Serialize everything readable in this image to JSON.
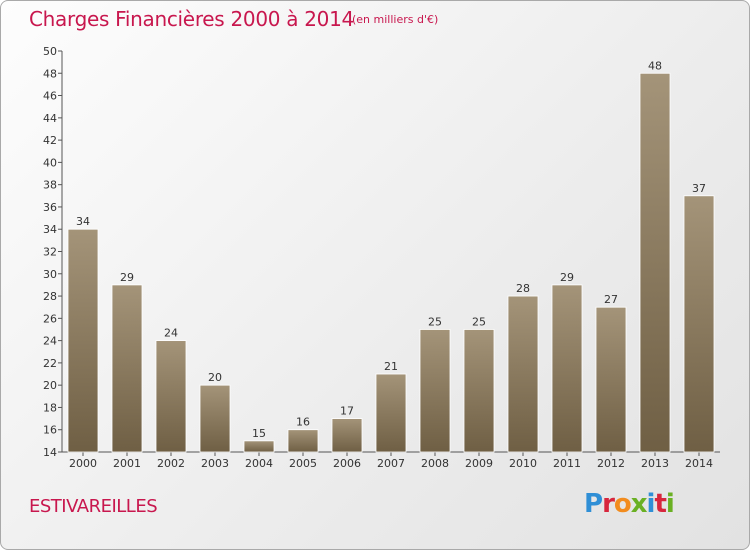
{
  "header": {
    "title": "Charges Financières 2000 à 2014",
    "subtitle": "(en milliers d'€)"
  },
  "footer": {
    "place": "ESTIVAREILLES",
    "logo_letters": [
      "P",
      "r",
      "o",
      "x",
      "i",
      "t",
      "i"
    ],
    "logo_colors": [
      "#2f8fd6",
      "#d7263d",
      "#f28c1e",
      "#6ab023",
      "#2f8fd6",
      "#d7263d",
      "#6ab023"
    ]
  },
  "colors": {
    "bar_top": "#a49479",
    "bar_bottom": "#6f5f44",
    "title": "#c8174e"
  },
  "chart_data": {
    "type": "bar",
    "categories": [
      "2000",
      "2001",
      "2002",
      "2003",
      "2004",
      "2005",
      "2006",
      "2007",
      "2008",
      "2009",
      "2010",
      "2011",
      "2012",
      "2013",
      "2014"
    ],
    "values": [
      34,
      29,
      24,
      20,
      15,
      16,
      17,
      21,
      25,
      25,
      28,
      29,
      27,
      48,
      37
    ],
    "data_labels": [
      "34",
      "29",
      "24",
      "20",
      "15",
      "16",
      "17",
      "21",
      "25",
      "25",
      "28",
      "29",
      "27",
      "48",
      "37"
    ],
    "y_ticks": [
      "14",
      "16",
      "18",
      "20",
      "22",
      "24",
      "26",
      "28",
      "30",
      "32",
      "34",
      "36",
      "38",
      "40",
      "42",
      "44",
      "46",
      "48",
      "50"
    ],
    "ylim": [
      14,
      50
    ],
    "grid": false
  }
}
